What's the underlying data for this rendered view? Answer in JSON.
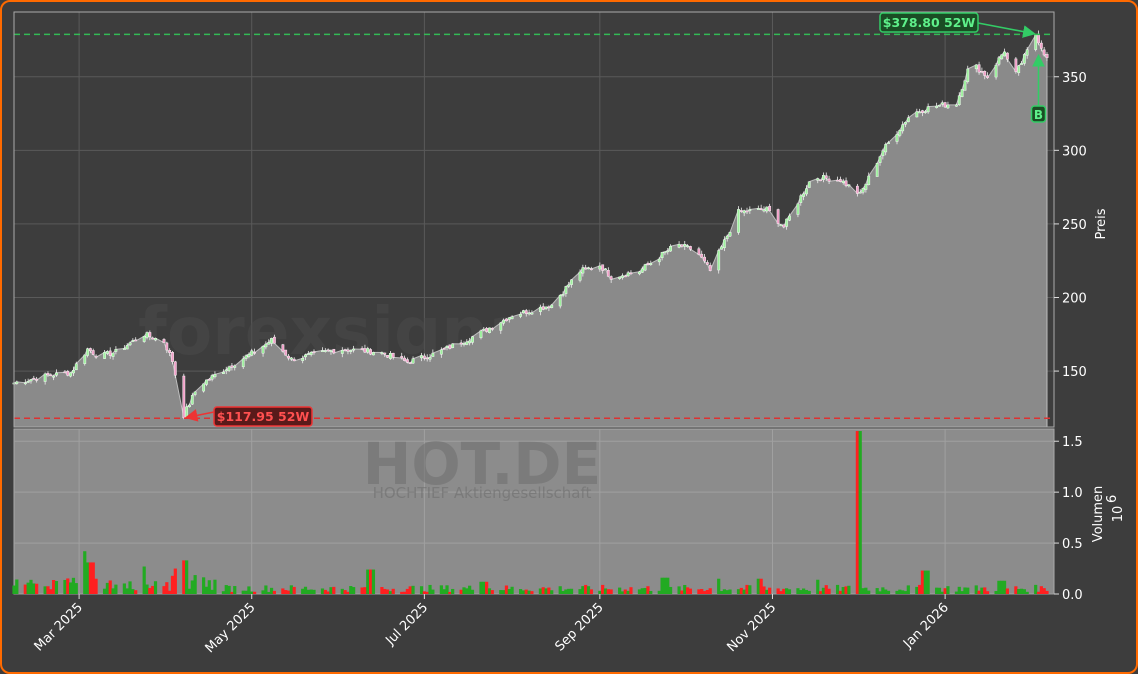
{
  "chart_data": {
    "type": "candlestick",
    "watermark": "forexsignale.trade",
    "ticker": "HOT.DE",
    "company": "HOCHTIEF Aktiengesellschaft",
    "price_axis": {
      "label": "Preis",
      "ticks": [
        150,
        200,
        250,
        300,
        350
      ],
      "range": [
        112,
        394
      ]
    },
    "volume_axis": {
      "label": "Volumen",
      "exponent": "6",
      "ticks": [
        "0.0",
        "0.5",
        "1.0",
        "1.5"
      ],
      "tick_values": [
        0,
        0.5,
        1.0,
        1.5
      ],
      "range": [
        0,
        1.62
      ]
    },
    "date_range": [
      "2025-02-06",
      "2026-02-06"
    ],
    "x_ticks": [
      {
        "date": "2025-03-01",
        "label": "Mar 2025"
      },
      {
        "date": "2025-05-01",
        "label": "May 2025"
      },
      {
        "date": "2025-07-01",
        "label": "Jul 2025"
      },
      {
        "date": "2025-09-01",
        "label": "Sep 2025"
      },
      {
        "date": "2025-11-01",
        "label": "Nov 2025"
      },
      {
        "date": "2026-01-01",
        "label": "Jan 2026"
      }
    ],
    "high_52w": {
      "label": "$378.80 52W",
      "value": 378.8,
      "date": "2026-02-02"
    },
    "low_52w": {
      "label": "$117.95 52W",
      "value": 117.95,
      "date": "2025-04-07"
    },
    "signal": {
      "label": "B",
      "date": "2026-02-03",
      "price": 362
    },
    "last_close": 362,
    "price_path": [
      [
        "2025-02-06",
        142
      ],
      [
        "2025-02-18",
        147
      ],
      [
        "2025-02-26",
        149
      ],
      [
        "2025-03-04",
        165
      ],
      [
        "2025-03-08",
        160
      ],
      [
        "2025-03-14",
        163
      ],
      [
        "2025-03-24",
        175
      ],
      [
        "2025-03-31",
        170
      ],
      [
        "2025-04-03",
        157
      ],
      [
        "2025-04-07",
        120
      ],
      [
        "2025-04-12",
        140
      ],
      [
        "2025-04-22",
        152
      ],
      [
        "2025-05-01",
        162
      ],
      [
        "2025-05-08",
        171
      ],
      [
        "2025-05-15",
        158
      ],
      [
        "2025-06-01",
        165
      ],
      [
        "2025-06-15",
        163
      ],
      [
        "2025-06-25",
        156
      ],
      [
        "2025-07-05",
        162
      ],
      [
        "2025-07-20",
        175
      ],
      [
        "2025-08-01",
        188
      ],
      [
        "2025-08-15",
        195
      ],
      [
        "2025-08-25",
        218
      ],
      [
        "2025-09-01",
        222
      ],
      [
        "2025-09-05",
        214
      ],
      [
        "2025-09-15",
        218
      ],
      [
        "2025-09-28",
        236
      ],
      [
        "2025-10-05",
        232
      ],
      [
        "2025-10-10",
        218
      ],
      [
        "2025-10-20",
        258
      ],
      [
        "2025-10-30",
        260
      ],
      [
        "2025-11-05",
        248
      ],
      [
        "2025-11-15",
        282
      ],
      [
        "2025-11-25",
        280
      ],
      [
        "2025-12-02",
        270
      ],
      [
        "2025-12-10",
        300
      ],
      [
        "2025-12-20",
        325
      ],
      [
        "2025-12-28",
        330
      ],
      [
        "2026-01-05",
        332
      ],
      [
        "2026-01-10",
        360
      ],
      [
        "2026-01-16",
        350
      ],
      [
        "2026-01-22",
        368
      ],
      [
        "2026-01-25",
        348
      ],
      [
        "2026-02-02",
        378.8
      ],
      [
        "2026-02-06",
        362
      ]
    ],
    "volume_spikes": [
      [
        "2025-03-02",
        0.42
      ],
      [
        "2025-03-05",
        0.31
      ],
      [
        "2025-03-23",
        0.27
      ],
      [
        "2025-04-07",
        0.33
      ],
      [
        "2025-04-05",
        0.25
      ],
      [
        "2025-06-12",
        0.24
      ],
      [
        "2025-07-22",
        0.12
      ],
      [
        "2025-09-24",
        0.16
      ],
      [
        "2025-10-12",
        0.15
      ],
      [
        "2025-10-27",
        0.15
      ],
      [
        "2025-11-16",
        0.14
      ],
      [
        "2025-12-01",
        1.6
      ],
      [
        "2025-12-25",
        0.23
      ],
      [
        "2026-01-21",
        0.13
      ]
    ]
  },
  "colors": {
    "background": "#3d3d3d",
    "frame": "#ff6a00",
    "price_area": "#8a8a8a",
    "up": "#22aa22",
    "down": "#ff2020",
    "high_line": "#33bb55",
    "low_line": "#dd3333"
  }
}
